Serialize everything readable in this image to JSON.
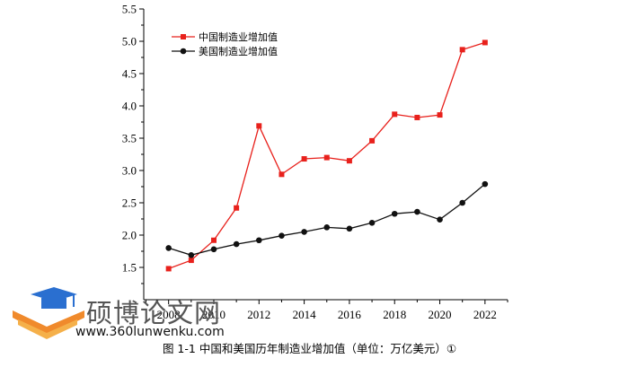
{
  "chart_data": {
    "type": "line",
    "x": [
      2008,
      2009,
      2010,
      2011,
      2012,
      2013,
      2014,
      2015,
      2016,
      2017,
      2018,
      2019,
      2020,
      2021,
      2022
    ],
    "series": [
      {
        "name": "中国制造业增加值",
        "color": "#e8211c",
        "marker": "square",
        "values": [
          1.48,
          1.61,
          1.92,
          2.42,
          3.69,
          2.94,
          3.18,
          3.2,
          3.15,
          3.46,
          3.87,
          3.82,
          3.86,
          4.87,
          4.98
        ]
      },
      {
        "name": "美国制造业增加值",
        "color": "#111111",
        "marker": "circle",
        "values": [
          1.8,
          1.69,
          1.78,
          1.86,
          1.92,
          1.99,
          2.05,
          2.12,
          2.1,
          2.19,
          2.33,
          2.36,
          2.24,
          2.5,
          2.79
        ]
      }
    ],
    "xlim": [
      2006.9,
      2023.0
    ],
    "ylim": [
      1.0,
      5.5
    ],
    "xticks": [
      "2008",
      "2010",
      "2012",
      "2014",
      "2016",
      "2018",
      "2020",
      "2022"
    ],
    "yticks": [
      "1.5",
      "2.0",
      "2.5",
      "3.0",
      "3.5",
      "4.0",
      "4.5",
      "5.0",
      "5.5"
    ],
    "grid": false,
    "legend": "top-left"
  },
  "caption": "图 1-1 中国和美国历年制造业增加值（单位：万亿美元）①",
  "watermark": {
    "title": "硕博论文网",
    "url": "www.360lunwenku.com"
  }
}
